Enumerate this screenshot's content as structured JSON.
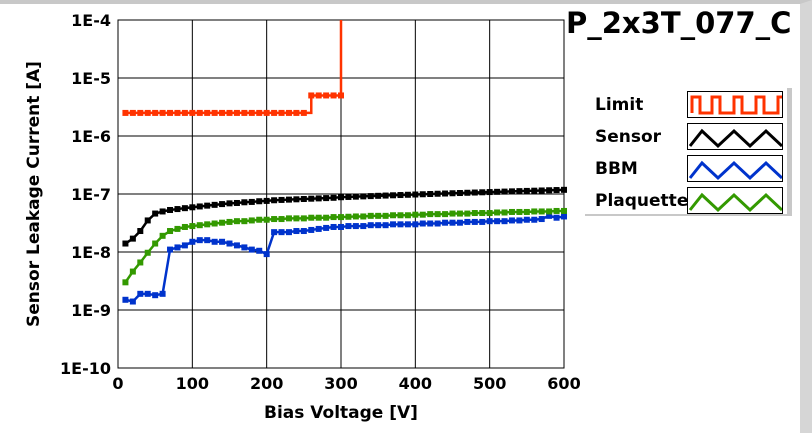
{
  "title": "P_2x3T_077_C",
  "chart_data": {
    "type": "line",
    "title": "P_2x3T_077_C",
    "xlabel": "Bias Voltage [V]",
    "ylabel": "Sensor Leakage Current [A]",
    "xlim": [
      0,
      600
    ],
    "ylim": [
      1e-10,
      0.0001
    ],
    "yscale": "log",
    "xticks": [
      "0",
      "100",
      "200",
      "300",
      "400",
      "500",
      "600"
    ],
    "yticks": [
      "1E-10",
      "1E-9",
      "1E-8",
      "1E-7",
      "1E-6",
      "1E-5",
      "1E-4"
    ],
    "grid": true,
    "legend_position": "right",
    "series": [
      {
        "name": "Limit",
        "color": "#ff3300",
        "step": true,
        "x": [
          10,
          20,
          30,
          40,
          50,
          60,
          70,
          80,
          90,
          100,
          110,
          120,
          130,
          140,
          150,
          160,
          170,
          180,
          190,
          200,
          210,
          220,
          230,
          240,
          250,
          260,
          270,
          280,
          290,
          300,
          300
        ],
        "values": [
          2.5e-06,
          2.5e-06,
          2.5e-06,
          2.5e-06,
          2.5e-06,
          2.5e-06,
          2.5e-06,
          2.5e-06,
          2.5e-06,
          2.5e-06,
          2.5e-06,
          2.5e-06,
          2.5e-06,
          2.5e-06,
          2.5e-06,
          2.5e-06,
          2.5e-06,
          2.5e-06,
          2.5e-06,
          2.5e-06,
          2.5e-06,
          2.5e-06,
          2.5e-06,
          2.5e-06,
          2.5e-06,
          5e-06,
          5e-06,
          5e-06,
          5e-06,
          5e-06,
          0.0001
        ]
      },
      {
        "name": "Sensor",
        "color": "#000000",
        "values": [
          1.4e-08,
          1.7e-08,
          2.3e-08,
          3.5e-08,
          4.6e-08,
          5e-08,
          5.3e-08,
          5.5e-08,
          5.7e-08,
          5.9e-08,
          6.1e-08,
          6.3e-08,
          6.5e-08,
          6.7e-08,
          6.9e-08,
          7e-08,
          7.2e-08,
          7.3e-08,
          7.5e-08,
          7.6e-08,
          7.8e-08,
          7.9e-08,
          8e-08,
          8.1e-08,
          8.2e-08,
          8.3e-08,
          8.4e-08,
          8.5e-08,
          8.6e-08,
          8.8e-08,
          8.9e-08,
          9e-08,
          9.1e-08,
          9.2e-08,
          9.3e-08,
          9.4e-08,
          9.5e-08,
          9.6e-08,
          9.7e-08,
          9.8e-08,
          9.9e-08,
          1e-07,
          1.01e-07,
          1.02e-07,
          1.03e-07,
          1.04e-07,
          1.05e-07,
          1.06e-07,
          1.07e-07,
          1.08e-07,
          1.09e-07,
          1.1e-07,
          1.11e-07,
          1.12e-07,
          1.13e-07,
          1.14e-07,
          1.15e-07,
          1.16e-07,
          1.17e-07,
          1.18e-07
        ]
      },
      {
        "name": "BBM",
        "color": "#0033cc",
        "values": [
          1.5e-09,
          1.4e-09,
          1.9e-09,
          1.9e-09,
          1.8e-09,
          1.9e-09,
          1.1e-08,
          1.2e-08,
          1.3e-08,
          1.5e-08,
          1.6e-08,
          1.6e-08,
          1.5e-08,
          1.5e-08,
          1.4e-08,
          1.3e-08,
          1.2e-08,
          1.1e-08,
          1.05e-08,
          9.2e-09,
          2.2e-08,
          2.2e-08,
          2.2e-08,
          2.3e-08,
          2.3e-08,
          2.4e-08,
          2.5e-08,
          2.6e-08,
          2.7e-08,
          2.7e-08,
          2.8e-08,
          2.8e-08,
          2.8e-08,
          2.9e-08,
          2.9e-08,
          2.9e-08,
          3e-08,
          3e-08,
          3e-08,
          3e-08,
          3.1e-08,
          3.1e-08,
          3.1e-08,
          3.2e-08,
          3.2e-08,
          3.2e-08,
          3.3e-08,
          3.3e-08,
          3.3e-08,
          3.4e-08,
          3.4e-08,
          3.4e-08,
          3.5e-08,
          3.5e-08,
          3.6e-08,
          3.6e-08,
          3.7e-08,
          4.2e-08,
          3.9e-08,
          4.1e-08
        ]
      },
      {
        "name": "Plaquette",
        "color": "#339900",
        "values": [
          3e-09,
          4.6e-09,
          6.6e-09,
          9.7e-09,
          1.4e-08,
          1.9e-08,
          2.3e-08,
          2.5e-08,
          2.7e-08,
          2.8e-08,
          2.9e-08,
          3e-08,
          3.1e-08,
          3.2e-08,
          3.3e-08,
          3.4e-08,
          3.4e-08,
          3.5e-08,
          3.6e-08,
          3.6e-08,
          3.7e-08,
          3.7e-08,
          3.8e-08,
          3.8e-08,
          3.8e-08,
          3.9e-08,
          3.9e-08,
          3.9e-08,
          4e-08,
          4e-08,
          4.05e-08,
          4.1e-08,
          4.1e-08,
          4.2e-08,
          4.2e-08,
          4.2e-08,
          4.3e-08,
          4.3e-08,
          4.3e-08,
          4.4e-08,
          4.4e-08,
          4.5e-08,
          4.5e-08,
          4.5e-08,
          4.6e-08,
          4.6e-08,
          4.6e-08,
          4.7e-08,
          4.7e-08,
          4.7e-08,
          4.8e-08,
          4.8e-08,
          4.9e-08,
          4.9e-08,
          4.9e-08,
          5e-08,
          5e-08,
          5e-08,
          5.1e-08,
          5.1e-08
        ]
      }
    ]
  }
}
